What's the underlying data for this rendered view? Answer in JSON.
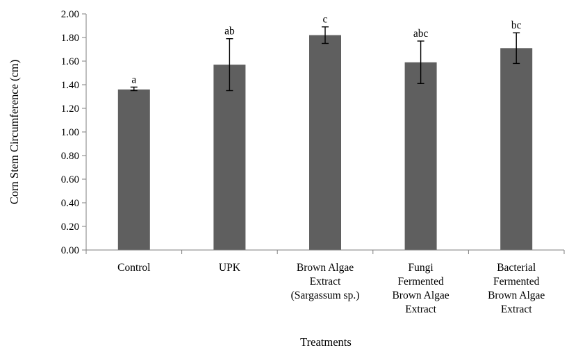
{
  "chart_data": {
    "type": "bar",
    "title": "",
    "xlabel": "Treatments",
    "ylabel": "Corn Stem Circumference (cm)",
    "ylim": [
      0,
      2.0
    ],
    "y_ticks": [
      "0.00",
      "0.20",
      "0.40",
      "0.60",
      "0.80",
      "1.00",
      "1.20",
      "1.40",
      "1.60",
      "1.80",
      "2.00"
    ],
    "grid": false,
    "legend": "none",
    "bar_color": "#5f5f5f",
    "categories": [
      [
        "Control"
      ],
      [
        "UPK"
      ],
      [
        "Brown Algae",
        "Extract",
        "(Sargassum sp.)"
      ],
      [
        "Fungi",
        "Fermented",
        "Brown Algae",
        "Extract"
      ],
      [
        "Bacterial",
        "Fermented",
        "Brown Algae",
        "Extract"
      ]
    ],
    "values": [
      1.36,
      1.57,
      1.82,
      1.59,
      1.71
    ],
    "error_low": [
      1.35,
      1.35,
      1.75,
      1.41,
      1.58
    ],
    "error_high": [
      1.38,
      1.79,
      1.89,
      1.77,
      1.84
    ],
    "significance_labels": [
      "a",
      "ab",
      "c",
      "abc",
      "bc"
    ]
  }
}
